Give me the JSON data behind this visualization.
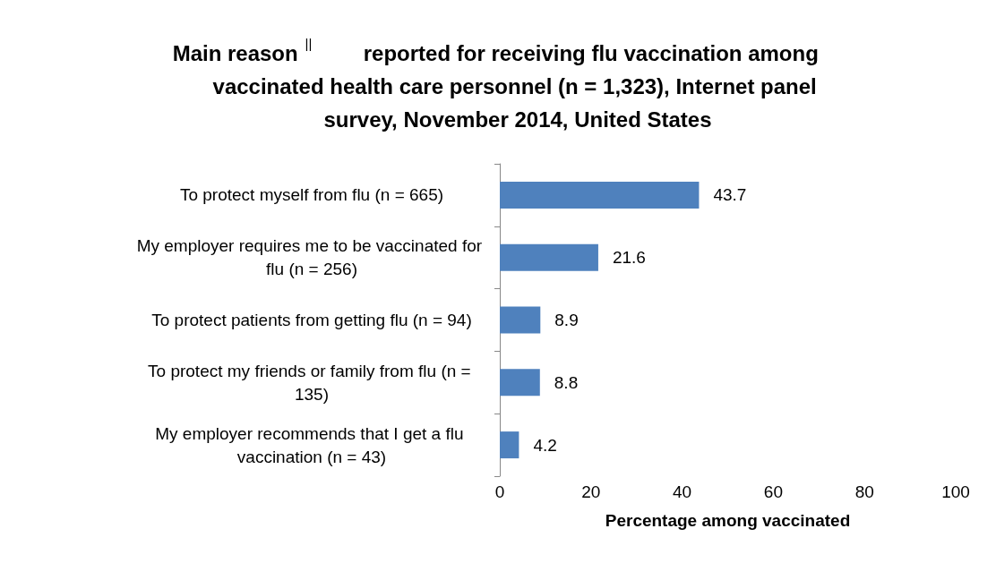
{
  "chart_data": {
    "type": "bar",
    "orientation": "horizontal",
    "title": "Main reason$^{||}$ reported for receiving flu vaccination among vaccinated health care personnel (n = 1,323), Internet panel survey, November 2014, United States",
    "xlabel": "Percentage among vaccinated",
    "categories": [
      "To protect myself from flu (n = 665)",
      "My employer requires me to be vaccinated for flu (n = 256)",
      "To protect patients from getting flu (n = 94)",
      "To protect my friends or family from flu (n = 135)",
      "My employer recommends that I get a flu vaccination (n = 43)"
    ],
    "values": [
      43.7,
      21.6,
      8.9,
      8.8,
      4.2
    ],
    "color": "#4f81bd",
    "xlim": [
      0,
      100
    ],
    "xticks": [
      0,
      20,
      40,
      60,
      80,
      100
    ],
    "data_labels": true,
    "grid": false
  }
}
